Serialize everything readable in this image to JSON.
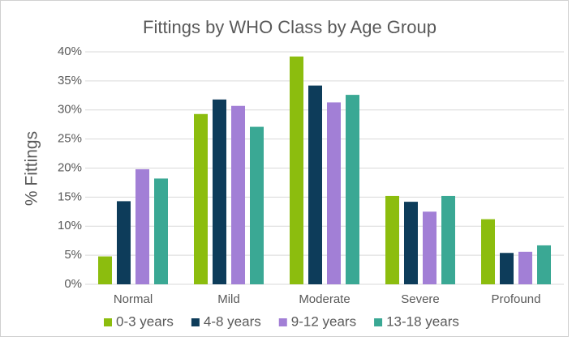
{
  "chart_data": {
    "type": "bar",
    "title": "Fittings by WHO Class by Age Group",
    "y_label": "% Fittings",
    "categories": [
      "Normal",
      "Mild",
      "Moderate",
      "Severe",
      "Profound"
    ],
    "series": [
      {
        "name": "0-3 years",
        "color": "#8cbd0e",
        "values": [
          4.8,
          29.3,
          39.2,
          15.2,
          11.2
        ]
      },
      {
        "name": "4-8 years",
        "color": "#0d3c5a",
        "values": [
          14.3,
          31.8,
          34.2,
          14.2,
          5.4
        ]
      },
      {
        "name": "9-12 years",
        "color": "#a27fd6",
        "values": [
          19.8,
          30.7,
          31.3,
          12.5,
          5.6
        ]
      },
      {
        "name": "13-18 years",
        "color": "#3aa894",
        "values": [
          18.2,
          27.1,
          32.6,
          15.2,
          6.7
        ]
      }
    ],
    "ylim": [
      0,
      40
    ],
    "yticks": [
      {
        "value": 0,
        "label": "0%"
      },
      {
        "value": 5,
        "label": "5%"
      },
      {
        "value": 10,
        "label": "10%"
      },
      {
        "value": 15,
        "label": "15%"
      },
      {
        "value": 20,
        "label": "20%"
      },
      {
        "value": 25,
        "label": "25%"
      },
      {
        "value": 30,
        "label": "30%"
      },
      {
        "value": 35,
        "label": "35%"
      },
      {
        "value": 40,
        "label": "40%"
      }
    ],
    "grid": true,
    "legend": "bottom"
  }
}
